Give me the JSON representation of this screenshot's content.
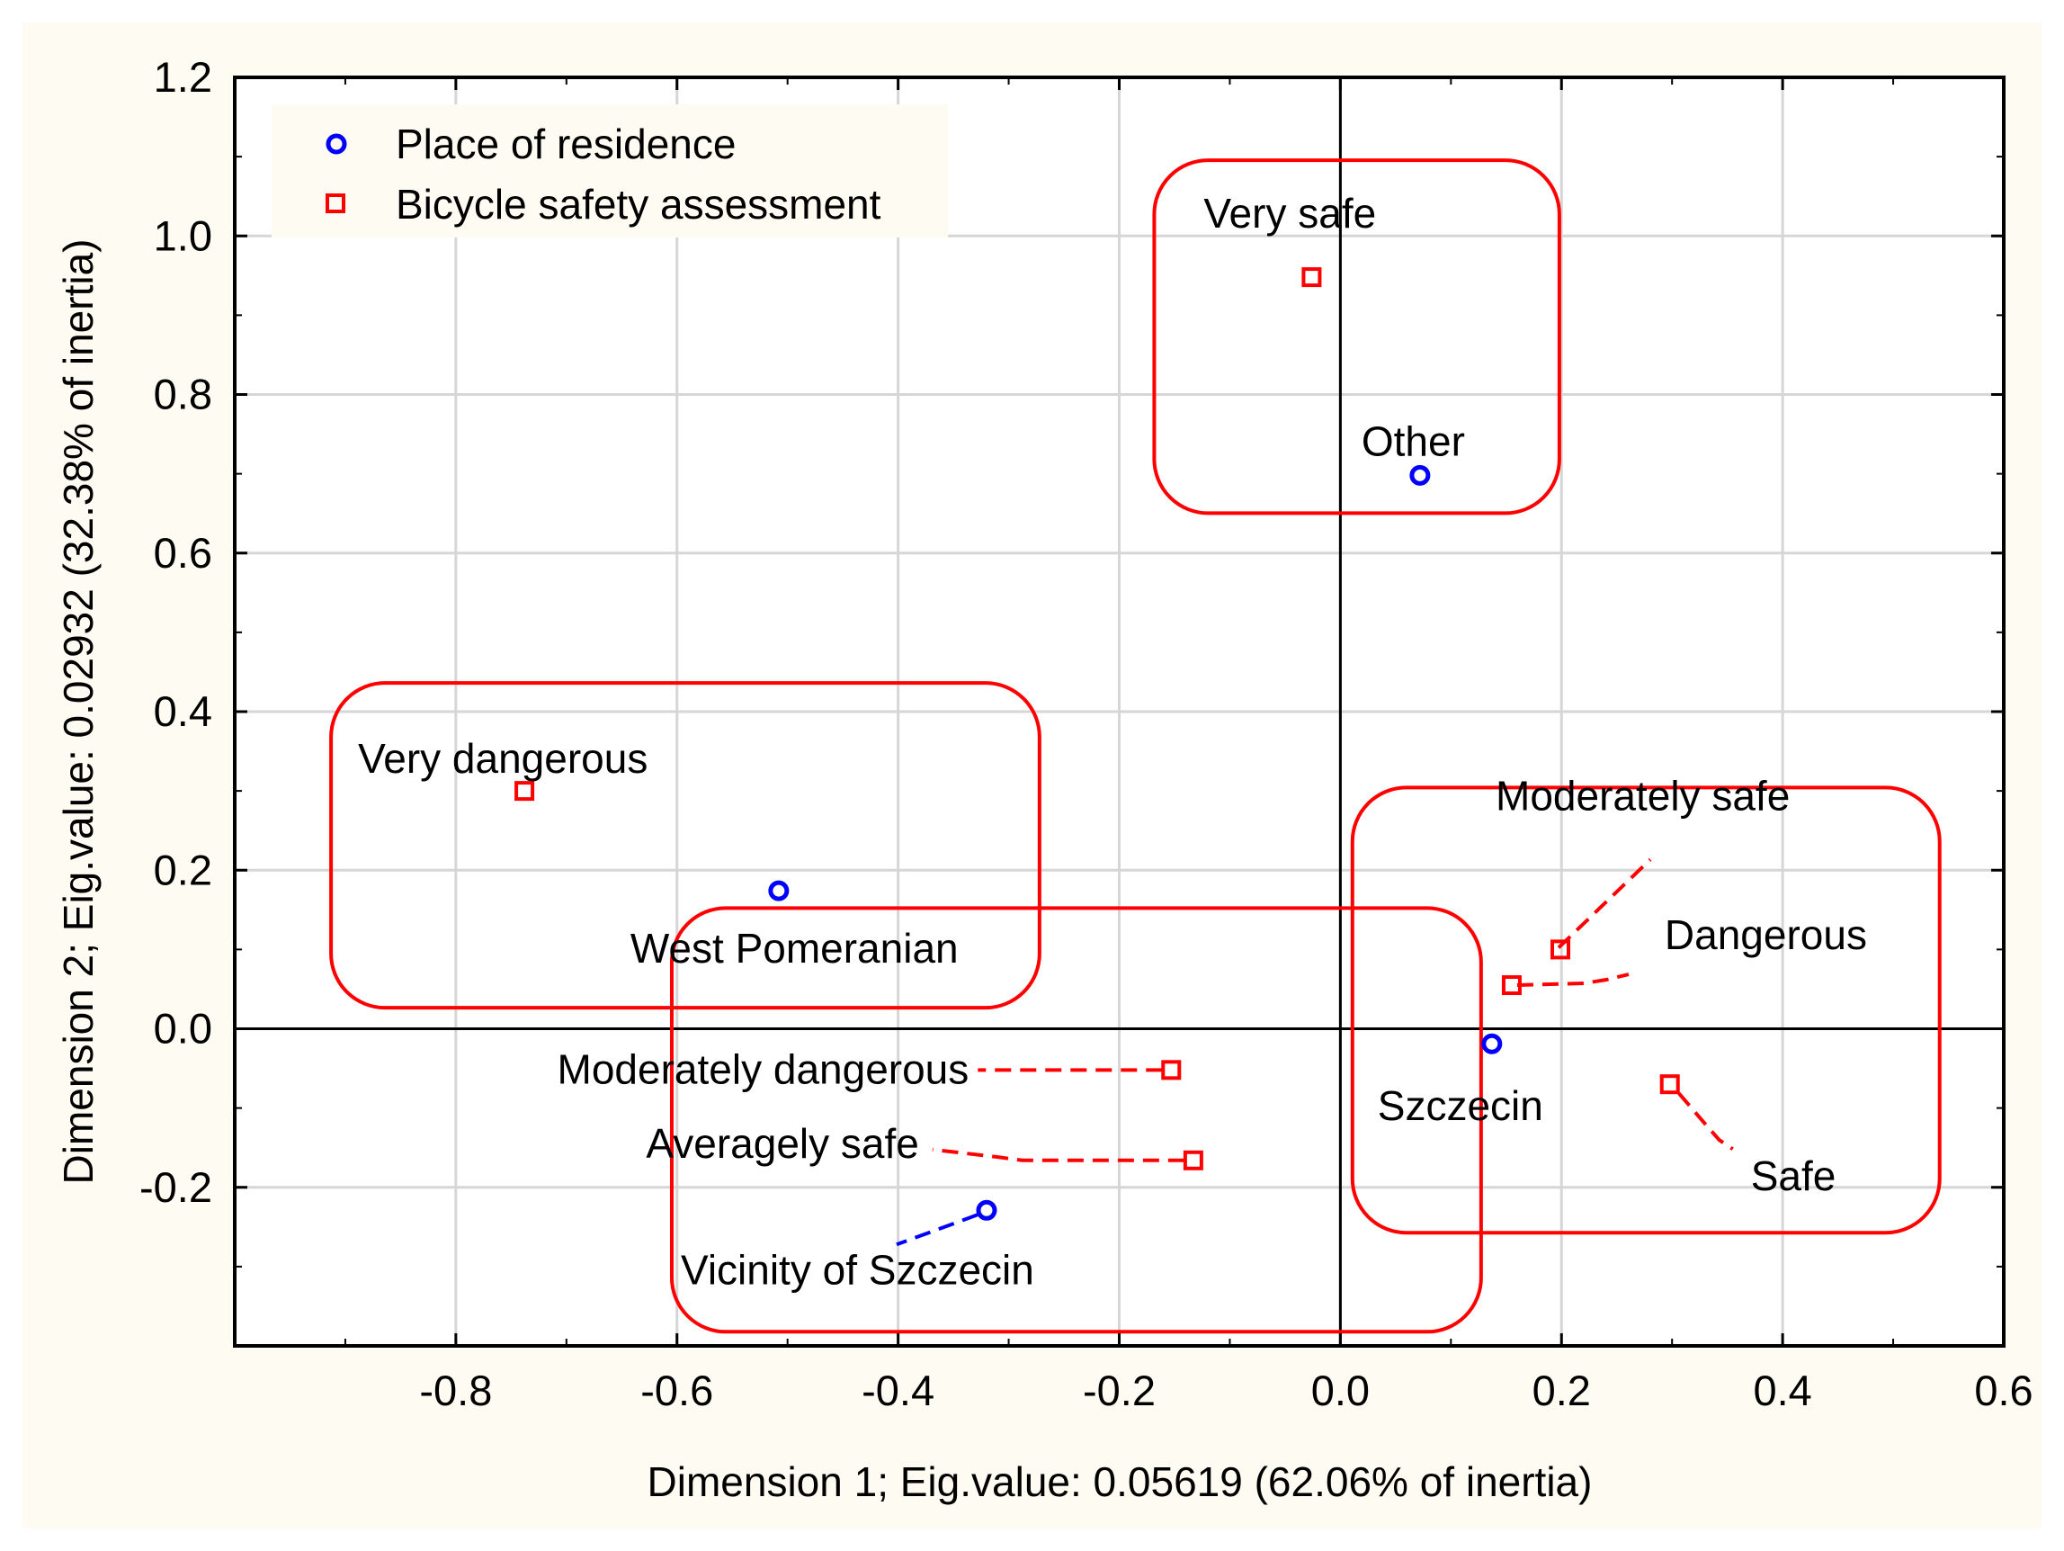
{
  "chart_data": {
    "type": "scatter",
    "xlabel": "Dimension 1; Eig.value: 0.05619 (62.06% of inertia)",
    "ylabel": "Dimension 2; Eig.value: 0.02932 (32.38% of inertia)",
    "xlim": [
      -1.0,
      0.6
    ],
    "ylim": [
      -0.4,
      1.2
    ],
    "xticks": [
      "-0.8",
      "-0.6",
      "-0.4",
      "-0.2",
      "0.0",
      "0.2",
      "0.4",
      "0.6"
    ],
    "yticks": [
      "1.2",
      "1.0",
      "0.8",
      "0.6",
      "0.4",
      "0.2",
      "0.0",
      "-0.2"
    ],
    "grid": true,
    "legend_position": "top-left",
    "series": [
      {
        "name": "Place of residence",
        "marker": "circle",
        "color": "#0000ff",
        "points": [
          {
            "label": "Other",
            "x": 0.072,
            "y": 0.698
          },
          {
            "label": "West Pomeranian",
            "x": -0.508,
            "y": 0.174
          },
          {
            "label": "Szczecin",
            "x": 0.137,
            "y": -0.019
          },
          {
            "label": "Vicinity of Szczecin",
            "x": -0.32,
            "y": -0.229
          }
        ]
      },
      {
        "name": "Bicycle safety assessment",
        "marker": "square",
        "color": "#ff0000",
        "points": [
          {
            "label": "Very safe",
            "x": -0.026,
            "y": 0.948
          },
          {
            "label": "Very dangerous",
            "x": -0.738,
            "y": 0.3
          },
          {
            "label": "Moderately safe",
            "x": 0.199,
            "y": 0.1
          },
          {
            "label": "Dangerous",
            "x": 0.155,
            "y": 0.055
          },
          {
            "label": "Safe",
            "x": 0.298,
            "y": -0.07
          },
          {
            "label": "Moderately dangerous",
            "x": -0.153,
            "y": -0.052
          },
          {
            "label": "Averagely safe",
            "x": -0.133,
            "y": -0.166
          }
        ]
      }
    ],
    "groupings": [
      {
        "members": [
          "Very safe",
          "Other"
        ],
        "color": "#ff0000"
      },
      {
        "members": [
          "Very dangerous",
          "West Pomeranian"
        ],
        "color": "#ff0000"
      },
      {
        "members": [
          "Moderately safe",
          "Dangerous",
          "Szczecin",
          "Safe"
        ],
        "color": "#ff0000"
      },
      {
        "members": [
          "Moderately dangerous",
          "Averagely safe",
          "Vicinity of Szczecin"
        ],
        "color": "#ff0000"
      }
    ]
  }
}
